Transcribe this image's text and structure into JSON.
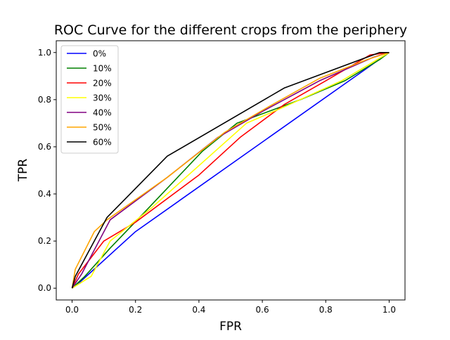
{
  "chart_data": {
    "type": "line",
    "title": "ROC Curve for the different crops from the periphery",
    "xlabel": "FPR",
    "ylabel": "TPR",
    "xlim": [
      -0.05,
      1.05
    ],
    "ylim": [
      -0.05,
      1.05
    ],
    "xticks": [
      "0.0",
      "0.2",
      "0.4",
      "0.6",
      "0.8",
      "1.0"
    ],
    "yticks": [
      "0.0",
      "0.2",
      "0.4",
      "0.6",
      "0.8",
      "1.0"
    ],
    "grid": false,
    "legend_position": "top-left",
    "series": [
      {
        "name": "0%",
        "color": "#0000ff",
        "x": [
          0.0,
          0.02,
          0.2,
          1.0
        ],
        "y": [
          0.0,
          0.02,
          0.24,
          1.0
        ]
      },
      {
        "name": "10%",
        "color": "#008000",
        "x": [
          0.0,
          0.04,
          0.12,
          0.22,
          0.41,
          0.52,
          0.62,
          0.72,
          0.86,
          0.97,
          1.0
        ],
        "y": [
          0.0,
          0.05,
          0.17,
          0.31,
          0.58,
          0.7,
          0.75,
          0.8,
          0.88,
          0.97,
          1.0
        ]
      },
      {
        "name": "20%",
        "color": "#ff0000",
        "x": [
          0.0,
          0.02,
          0.1,
          0.2,
          0.4,
          0.53,
          0.67,
          0.8,
          0.94,
          1.0
        ],
        "y": [
          0.0,
          0.06,
          0.2,
          0.28,
          0.48,
          0.64,
          0.78,
          0.88,
          0.99,
          1.0
        ]
      },
      {
        "name": "30%",
        "color": "#ffff00",
        "x": [
          0.0,
          0.06,
          0.12,
          0.25,
          0.4,
          0.55,
          0.67,
          0.85,
          1.0
        ],
        "y": [
          0.0,
          0.05,
          0.2,
          0.34,
          0.52,
          0.7,
          0.77,
          0.88,
          1.0
        ]
      },
      {
        "name": "40%",
        "color": "#800080",
        "x": [
          0.0,
          0.03,
          0.12,
          0.3,
          0.46,
          0.6,
          0.78,
          0.95,
          1.0
        ],
        "y": [
          0.0,
          0.06,
          0.29,
          0.47,
          0.64,
          0.75,
          0.88,
          0.98,
          1.0
        ]
      },
      {
        "name": "50%",
        "color": "#ffa500",
        "x": [
          0.0,
          0.01,
          0.07,
          0.11,
          0.3,
          0.48,
          0.62,
          0.78,
          0.93,
          1.0
        ],
        "y": [
          0.0,
          0.08,
          0.24,
          0.29,
          0.47,
          0.66,
          0.77,
          0.89,
          0.97,
          1.0
        ]
      },
      {
        "name": "60%",
        "color": "#000000",
        "x": [
          0.0,
          0.01,
          0.11,
          0.3,
          0.67,
          0.97,
          1.0
        ],
        "y": [
          0.0,
          0.05,
          0.3,
          0.56,
          0.85,
          1.0,
          1.0
        ]
      }
    ]
  }
}
